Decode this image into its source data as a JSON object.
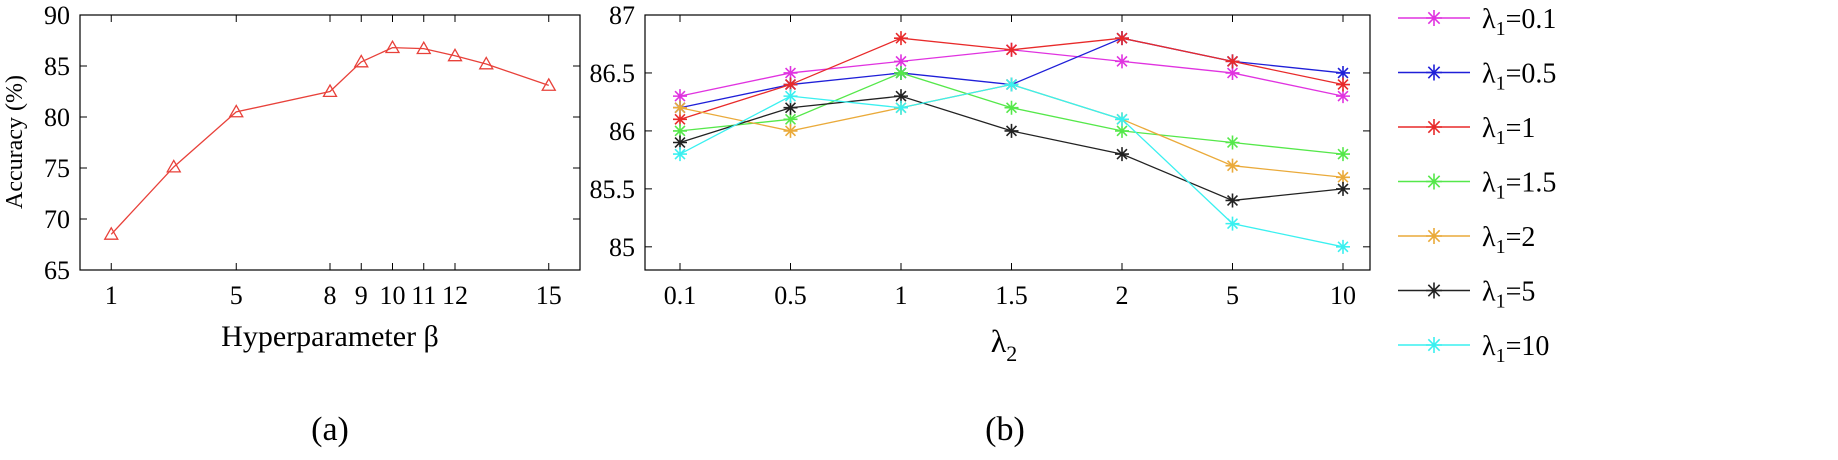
{
  "chart_data": [
    {
      "type": "line",
      "panel_label": "(a)",
      "xlabel": "Hyperparameter β",
      "ylabel": "Accuracy (%)",
      "xlim": [
        0,
        16
      ],
      "ylim": [
        65,
        90
      ],
      "xticks": [
        1,
        5,
        8,
        9,
        10,
        11,
        12,
        15
      ],
      "yticks": [
        65,
        70,
        75,
        80,
        85,
        90
      ],
      "grid": false,
      "marker": "triangle",
      "color": "#e8413a",
      "x": [
        1,
        3,
        5,
        8,
        9,
        10,
        11,
        12,
        13,
        15
      ],
      "y": [
        68.5,
        75.1,
        80.5,
        82.5,
        85.4,
        86.8,
        86.7,
        86.0,
        85.2,
        83.1
      ]
    },
    {
      "type": "line",
      "panel_label": "(b)",
      "xlabel": "λ",
      "xlabel_sub": "2",
      "ylim": [
        84.8,
        87
      ],
      "yticks": [
        85,
        85.5,
        86,
        86.5,
        87
      ],
      "categories": [
        "0.1",
        "0.5",
        "1",
        "1.5",
        "2",
        "5",
        "10"
      ],
      "grid": false,
      "legend_position": "right",
      "marker": "asterisk",
      "series": [
        {
          "name": "=0.1",
          "color": "#e033e0",
          "values": [
            86.3,
            86.5,
            86.6,
            86.7,
            86.6,
            86.5,
            86.3
          ]
        },
        {
          "name": "=0.5",
          "color": "#1f1fd8",
          "values": [
            86.2,
            86.4,
            86.5,
            86.4,
            86.8,
            86.6,
            86.5
          ]
        },
        {
          "name": "=1",
          "color": "#e82a2a",
          "values": [
            86.1,
            86.4,
            86.8,
            86.7,
            86.8,
            86.6,
            86.4
          ]
        },
        {
          "name": "=1.5",
          "color": "#55e84a",
          "values": [
            86.0,
            86.1,
            86.5,
            86.2,
            86.0,
            85.9,
            85.8
          ]
        },
        {
          "name": "=2",
          "color": "#eaaa3a",
          "values": [
            86.2,
            86.0,
            86.2,
            86.4,
            86.1,
            85.7,
            85.6
          ]
        },
        {
          "name": "=5",
          "color": "#222222",
          "values": [
            85.9,
            86.2,
            86.3,
            86.0,
            85.8,
            85.4,
            85.5
          ]
        },
        {
          "name": "=10",
          "color": "#3af0f0",
          "values": [
            85.8,
            86.3,
            86.2,
            86.4,
            86.1,
            85.2,
            85.0
          ]
        }
      ],
      "legend_symbol": "λ",
      "legend_sub": "1"
    }
  ]
}
